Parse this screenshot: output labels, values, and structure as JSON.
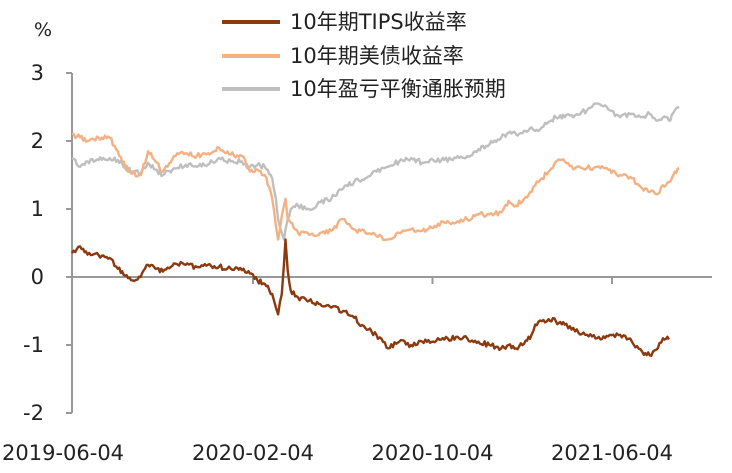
{
  "chart_data": {
    "type": "line",
    "ylabel": "%",
    "ylim": [
      -2,
      3
    ],
    "yticks": [
      3,
      2,
      1,
      0,
      -1,
      -2
    ],
    "x_start": "2019-06-04",
    "x_end": "2021-08-20",
    "xticks": [
      "2019-06-04",
      "2020-02-04",
      "2020-10-04",
      "2021-06-04"
    ],
    "grid": false,
    "legend_position": "top-center",
    "series": [
      {
        "name": "10年期TIPS收益率",
        "color": "#8B3A0F",
        "points": [
          [
            "2019-06-04",
            0.35
          ],
          [
            "2019-06-15",
            0.45
          ],
          [
            "2019-06-25",
            0.33
          ],
          [
            "2019-07-10",
            0.32
          ],
          [
            "2019-07-25",
            0.28
          ],
          [
            "2019-08-05",
            0.12
          ],
          [
            "2019-08-15",
            0.02
          ],
          [
            "2019-08-25",
            -0.05
          ],
          [
            "2019-09-05",
            0.0
          ],
          [
            "2019-09-15",
            0.18
          ],
          [
            "2019-09-25",
            0.12
          ],
          [
            "2019-10-05",
            0.08
          ],
          [
            "2019-10-20",
            0.2
          ],
          [
            "2019-11-05",
            0.18
          ],
          [
            "2019-11-20",
            0.15
          ],
          [
            "2019-12-05",
            0.18
          ],
          [
            "2019-12-20",
            0.15
          ],
          [
            "2020-01-05",
            0.12
          ],
          [
            "2020-01-20",
            0.1
          ],
          [
            "2020-01-31",
            0.05
          ],
          [
            "2020-02-10",
            -0.05
          ],
          [
            "2020-02-20",
            -0.1
          ],
          [
            "2020-03-01",
            -0.25
          ],
          [
            "2020-03-06",
            -0.45
          ],
          [
            "2020-03-09",
            -0.55
          ],
          [
            "2020-03-14",
            -0.25
          ],
          [
            "2020-03-17",
            0.2
          ],
          [
            "2020-03-19",
            0.55
          ],
          [
            "2020-03-22",
            0.1
          ],
          [
            "2020-03-26",
            -0.2
          ],
          [
            "2020-04-05",
            -0.3
          ],
          [
            "2020-04-20",
            -0.35
          ],
          [
            "2020-05-05",
            -0.4
          ],
          [
            "2020-05-20",
            -0.45
          ],
          [
            "2020-06-05",
            -0.5
          ],
          [
            "2020-06-20",
            -0.6
          ],
          [
            "2020-07-05",
            -0.75
          ],
          [
            "2020-07-20",
            -0.85
          ],
          [
            "2020-08-05",
            -1.05
          ],
          [
            "2020-08-20",
            -0.95
          ],
          [
            "2020-09-05",
            -1.0
          ],
          [
            "2020-09-20",
            -0.95
          ],
          [
            "2020-10-05",
            -0.95
          ],
          [
            "2020-10-20",
            -0.92
          ],
          [
            "2020-11-05",
            -0.88
          ],
          [
            "2020-11-20",
            -0.9
          ],
          [
            "2020-12-05",
            -0.95
          ],
          [
            "2020-12-20",
            -1.0
          ],
          [
            "2021-01-05",
            -1.05
          ],
          [
            "2021-01-15",
            -1.0
          ],
          [
            "2021-01-25",
            -1.05
          ],
          [
            "2021-02-05",
            -0.98
          ],
          [
            "2021-02-15",
            -0.85
          ],
          [
            "2021-02-20",
            -0.7
          ],
          [
            "2021-03-01",
            -0.65
          ],
          [
            "2021-03-10",
            -0.62
          ],
          [
            "2021-03-20",
            -0.65
          ],
          [
            "2021-04-01",
            -0.7
          ],
          [
            "2021-04-15",
            -0.8
          ],
          [
            "2021-05-01",
            -0.85
          ],
          [
            "2021-05-15",
            -0.9
          ],
          [
            "2021-06-01",
            -0.85
          ],
          [
            "2021-06-15",
            -0.85
          ],
          [
            "2021-07-01",
            -0.95
          ],
          [
            "2021-07-15",
            -1.1
          ],
          [
            "2021-07-25",
            -1.15
          ],
          [
            "2021-08-05",
            -1.05
          ],
          [
            "2021-08-12",
            -0.9
          ],
          [
            "2021-08-20",
            -0.92
          ]
        ]
      },
      {
        "name": "10年期美债收益率",
        "color": "#F4B183",
        "points": [
          [
            "2019-06-04",
            2.1
          ],
          [
            "2019-06-15",
            2.05
          ],
          [
            "2019-06-25",
            2.0
          ],
          [
            "2019-07-10",
            2.05
          ],
          [
            "2019-07-25",
            2.05
          ],
          [
            "2019-08-05",
            1.85
          ],
          [
            "2019-08-15",
            1.62
          ],
          [
            "2019-08-25",
            1.52
          ],
          [
            "2019-09-05",
            1.5
          ],
          [
            "2019-09-15",
            1.85
          ],
          [
            "2019-09-25",
            1.7
          ],
          [
            "2019-10-05",
            1.55
          ],
          [
            "2019-10-20",
            1.78
          ],
          [
            "2019-11-05",
            1.82
          ],
          [
            "2019-11-20",
            1.78
          ],
          [
            "2019-12-05",
            1.82
          ],
          [
            "2019-12-20",
            1.9
          ],
          [
            "2020-01-05",
            1.8
          ],
          [
            "2020-01-20",
            1.78
          ],
          [
            "2020-01-31",
            1.55
          ],
          [
            "2020-02-10",
            1.58
          ],
          [
            "2020-02-20",
            1.5
          ],
          [
            "2020-03-01",
            1.15
          ],
          [
            "2020-03-06",
            0.75
          ],
          [
            "2020-03-09",
            0.55
          ],
          [
            "2020-03-14",
            0.9
          ],
          [
            "2020-03-17",
            1.05
          ],
          [
            "2020-03-19",
            1.15
          ],
          [
            "2020-03-22",
            0.85
          ],
          [
            "2020-03-26",
            0.8
          ],
          [
            "2020-04-05",
            0.65
          ],
          [
            "2020-04-20",
            0.62
          ],
          [
            "2020-05-05",
            0.65
          ],
          [
            "2020-05-20",
            0.68
          ],
          [
            "2020-06-05",
            0.85
          ],
          [
            "2020-06-20",
            0.7
          ],
          [
            "2020-07-05",
            0.65
          ],
          [
            "2020-07-20",
            0.6
          ],
          [
            "2020-08-05",
            0.55
          ],
          [
            "2020-08-20",
            0.65
          ],
          [
            "2020-09-05",
            0.7
          ],
          [
            "2020-09-20",
            0.68
          ],
          [
            "2020-10-05",
            0.72
          ],
          [
            "2020-10-20",
            0.8
          ],
          [
            "2020-11-05",
            0.8
          ],
          [
            "2020-11-20",
            0.85
          ],
          [
            "2020-12-05",
            0.92
          ],
          [
            "2020-12-20",
            0.92
          ],
          [
            "2021-01-05",
            0.95
          ],
          [
            "2021-01-15",
            1.12
          ],
          [
            "2021-01-25",
            1.05
          ],
          [
            "2021-02-05",
            1.15
          ],
          [
            "2021-02-15",
            1.25
          ],
          [
            "2021-02-20",
            1.35
          ],
          [
            "2021-03-01",
            1.45
          ],
          [
            "2021-03-10",
            1.55
          ],
          [
            "2021-03-20",
            1.7
          ],
          [
            "2021-04-01",
            1.7
          ],
          [
            "2021-04-15",
            1.6
          ],
          [
            "2021-05-01",
            1.6
          ],
          [
            "2021-05-15",
            1.62
          ],
          [
            "2021-06-01",
            1.58
          ],
          [
            "2021-06-15",
            1.5
          ],
          [
            "2021-07-01",
            1.45
          ],
          [
            "2021-07-15",
            1.3
          ],
          [
            "2021-07-25",
            1.25
          ],
          [
            "2021-08-05",
            1.22
          ],
          [
            "2021-08-12",
            1.35
          ],
          [
            "2021-08-20",
            1.4
          ],
          [
            "2021-08-28",
            1.55
          ],
          [
            "2021-09-03",
            1.6
          ]
        ]
      },
      {
        "name": "10年盈亏平衡通胀预期",
        "color": "#BFBFBF",
        "points": [
          [
            "2019-06-04",
            1.75
          ],
          [
            "2019-06-15",
            1.62
          ],
          [
            "2019-06-25",
            1.7
          ],
          [
            "2019-07-10",
            1.72
          ],
          [
            "2019-07-25",
            1.75
          ],
          [
            "2019-08-05",
            1.72
          ],
          [
            "2019-08-15",
            1.6
          ],
          [
            "2019-08-25",
            1.55
          ],
          [
            "2019-09-05",
            1.52
          ],
          [
            "2019-09-15",
            1.68
          ],
          [
            "2019-09-25",
            1.58
          ],
          [
            "2019-10-05",
            1.5
          ],
          [
            "2019-10-20",
            1.6
          ],
          [
            "2019-11-05",
            1.65
          ],
          [
            "2019-11-20",
            1.62
          ],
          [
            "2019-12-05",
            1.65
          ],
          [
            "2019-12-20",
            1.75
          ],
          [
            "2020-01-05",
            1.7
          ],
          [
            "2020-01-20",
            1.7
          ],
          [
            "2020-01-31",
            1.62
          ],
          [
            "2020-02-10",
            1.65
          ],
          [
            "2020-02-20",
            1.62
          ],
          [
            "2020-03-01",
            1.45
          ],
          [
            "2020-03-06",
            1.15
          ],
          [
            "2020-03-09",
            0.85
          ],
          [
            "2020-03-14",
            0.65
          ],
          [
            "2020-03-17",
            0.55
          ],
          [
            "2020-03-19",
            0.7
          ],
          [
            "2020-03-22",
            0.85
          ],
          [
            "2020-03-26",
            1.0
          ],
          [
            "2020-04-05",
            1.05
          ],
          [
            "2020-04-20",
            1.0
          ],
          [
            "2020-05-05",
            1.1
          ],
          [
            "2020-05-20",
            1.15
          ],
          [
            "2020-06-05",
            1.3
          ],
          [
            "2020-06-20",
            1.4
          ],
          [
            "2020-07-05",
            1.45
          ],
          [
            "2020-07-20",
            1.55
          ],
          [
            "2020-08-05",
            1.62
          ],
          [
            "2020-08-20",
            1.7
          ],
          [
            "2020-09-05",
            1.75
          ],
          [
            "2020-09-20",
            1.68
          ],
          [
            "2020-10-05",
            1.72
          ],
          [
            "2020-10-20",
            1.72
          ],
          [
            "2020-11-05",
            1.75
          ],
          [
            "2020-11-20",
            1.78
          ],
          [
            "2020-12-05",
            1.88
          ],
          [
            "2020-12-20",
            1.95
          ],
          [
            "2021-01-05",
            2.05
          ],
          [
            "2021-01-15",
            2.12
          ],
          [
            "2021-01-25",
            2.1
          ],
          [
            "2021-02-05",
            2.15
          ],
          [
            "2021-02-15",
            2.2
          ],
          [
            "2021-02-20",
            2.15
          ],
          [
            "2021-03-01",
            2.2
          ],
          [
            "2021-03-10",
            2.28
          ],
          [
            "2021-03-20",
            2.35
          ],
          [
            "2021-04-01",
            2.35
          ],
          [
            "2021-04-15",
            2.38
          ],
          [
            "2021-05-01",
            2.45
          ],
          [
            "2021-05-15",
            2.55
          ],
          [
            "2021-06-01",
            2.45
          ],
          [
            "2021-06-15",
            2.35
          ],
          [
            "2021-07-01",
            2.4
          ],
          [
            "2021-07-15",
            2.35
          ],
          [
            "2021-07-25",
            2.4
          ],
          [
            "2021-08-05",
            2.3
          ],
          [
            "2021-08-12",
            2.35
          ],
          [
            "2021-08-20",
            2.3
          ],
          [
            "2021-08-28",
            2.45
          ],
          [
            "2021-09-03",
            2.5
          ]
        ]
      }
    ]
  }
}
